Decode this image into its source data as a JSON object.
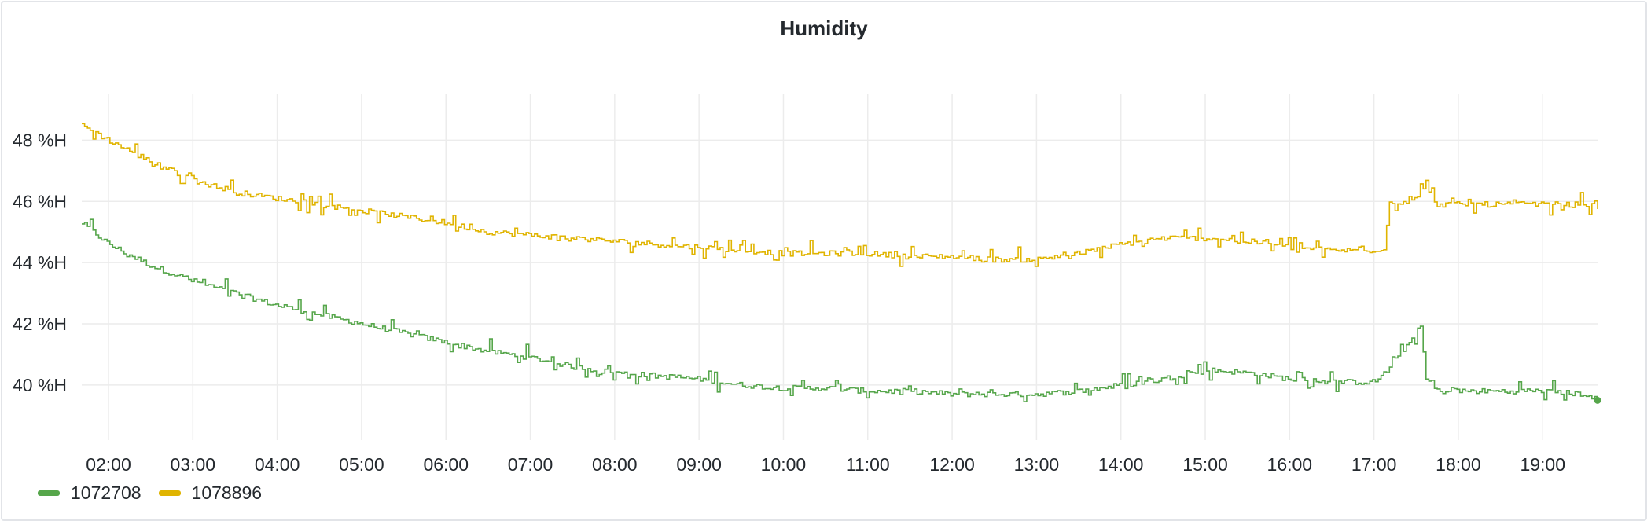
{
  "panel": {
    "title": "Humidity"
  },
  "colors": {
    "series_a": "#56a64b",
    "series_b": "#e0b400",
    "grid": "#ececec",
    "text": "#24292e"
  },
  "legend": [
    {
      "label": "1072708",
      "color": "#56a64b"
    },
    {
      "label": "1078896",
      "color": "#e0b400"
    }
  ],
  "chart_data": {
    "type": "line",
    "title": "Humidity",
    "xlabel": "",
    "ylabel": "",
    "x_ticks": [
      "02:00",
      "03:00",
      "04:00",
      "05:00",
      "06:00",
      "07:00",
      "08:00",
      "09:00",
      "10:00",
      "11:00",
      "12:00",
      "13:00",
      "14:00",
      "15:00",
      "16:00",
      "17:00",
      "18:00",
      "19:00"
    ],
    "y_ticks": [
      "40 %H",
      "42 %H",
      "44 %H",
      "46 %H",
      "48 %H"
    ],
    "y_tick_values": [
      40,
      42,
      44,
      46,
      48
    ],
    "xlim": [
      "01:41",
      "19:39"
    ],
    "ylim": [
      38.2,
      49.5
    ],
    "grid": true,
    "legend_position": "bottom-left",
    "series": [
      {
        "name": "1072708",
        "color": "#56a64b",
        "x": [
          "01:41",
          "02:00",
          "02:30",
          "03:00",
          "03:30",
          "04:00",
          "04:30",
          "05:00",
          "05:30",
          "06:00",
          "06:30",
          "07:00",
          "07:30",
          "08:00",
          "08:30",
          "09:00",
          "09:30",
          "10:00",
          "10:30",
          "11:00",
          "11:30",
          "12:00",
          "12:30",
          "13:00",
          "13:30",
          "14:00",
          "14:30",
          "15:00",
          "15:30",
          "16:00",
          "16:30",
          "17:00",
          "17:10",
          "17:33",
          "17:37",
          "17:45",
          "18:00",
          "18:30",
          "19:00",
          "19:30",
          "19:39"
        ],
        "values": [
          45.3,
          44.6,
          43.9,
          43.4,
          43.0,
          42.6,
          42.3,
          42.0,
          41.7,
          41.4,
          41.1,
          40.9,
          40.6,
          40.4,
          40.3,
          40.2,
          40.0,
          39.9,
          39.9,
          39.8,
          39.8,
          39.7,
          39.7,
          39.7,
          39.8,
          40.0,
          40.2,
          40.5,
          40.4,
          40.2,
          40.1,
          40.1,
          40.5,
          41.9,
          40.2,
          39.8,
          39.8,
          39.8,
          39.8,
          39.7,
          39.5
        ],
        "noise": 0.35
      },
      {
        "name": "1078896",
        "color": "#e0b400",
        "x": [
          "01:41",
          "02:00",
          "02:30",
          "03:00",
          "03:30",
          "04:00",
          "04:30",
          "05:00",
          "05:30",
          "06:00",
          "06:30",
          "07:00",
          "07:30",
          "08:00",
          "08:30",
          "09:00",
          "09:30",
          "10:00",
          "10:30",
          "11:00",
          "11:30",
          "12:00",
          "12:30",
          "13:00",
          "13:30",
          "14:00",
          "14:30",
          "15:00",
          "15:30",
          "16:00",
          "16:30",
          "17:00",
          "17:08",
          "17:10",
          "17:32",
          "17:33",
          "17:45",
          "18:00",
          "18:30",
          "19:00",
          "19:30",
          "19:39"
        ],
        "values": [
          48.5,
          48.0,
          47.3,
          46.7,
          46.3,
          46.1,
          45.9,
          45.7,
          45.5,
          45.3,
          45.0,
          44.9,
          44.8,
          44.7,
          44.6,
          44.5,
          44.4,
          44.3,
          44.3,
          44.3,
          44.2,
          44.2,
          44.1,
          44.1,
          44.3,
          44.6,
          44.8,
          44.8,
          44.7,
          44.5,
          44.4,
          44.4,
          44.5,
          45.9,
          46.1,
          46.6,
          45.9,
          45.9,
          45.9,
          45.9,
          45.9,
          45.8
        ],
        "noise": 0.35
      }
    ],
    "end_marker_series": "1072708"
  }
}
